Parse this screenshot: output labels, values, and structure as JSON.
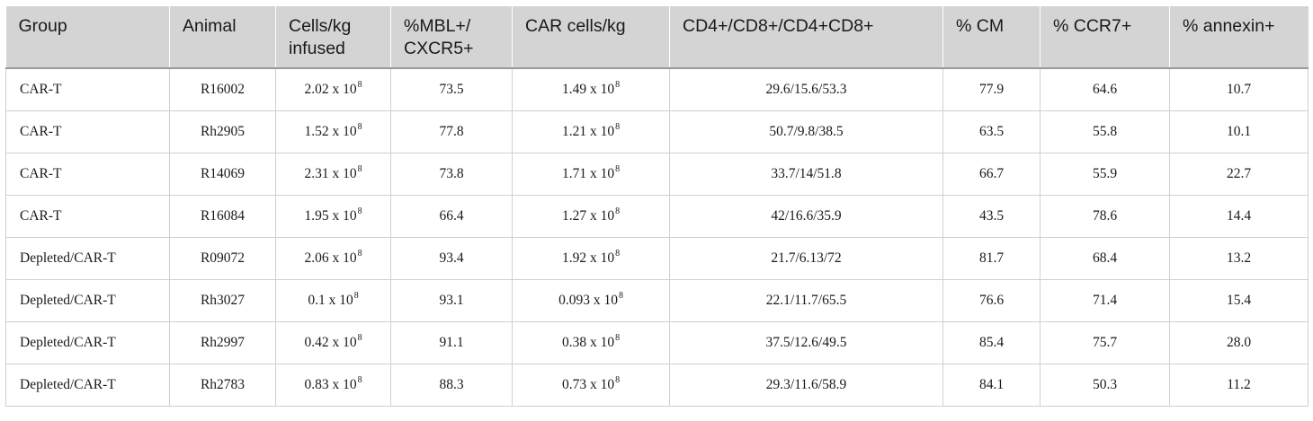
{
  "table": {
    "headers": [
      "Group",
      "Animal",
      "Cells/kg infused",
      "%MBL+/ CXCR5+",
      "CAR cells/kg",
      "CD4+/CD8+/CD4+CD8+",
      "% CM",
      "% CCR7+",
      "% annexin+"
    ],
    "rows": [
      {
        "group": "CAR-T",
        "animal": "R16002",
        "cells_base": "2.02 x 10",
        "cells_exp": "8",
        "mbl": "73.5",
        "car_base": "1.49 x 10",
        "car_exp": "8",
        "cd": "29.6/15.6/53.3",
        "cm": "77.9",
        "ccr7": "64.6",
        "annexin": "10.7"
      },
      {
        "group": "CAR-T",
        "animal": "Rh2905",
        "cells_base": "1.52 x 10",
        "cells_exp": "8",
        "mbl": "77.8",
        "car_base": "1.21 x 10",
        "car_exp": "8",
        "cd": "50.7/9.8/38.5",
        "cm": "63.5",
        "ccr7": "55.8",
        "annexin": "10.1"
      },
      {
        "group": "CAR-T",
        "animal": "R14069",
        "cells_base": "2.31 x 10",
        "cells_exp": "8",
        "mbl": "73.8",
        "car_base": "1.71 x 10",
        "car_exp": "8",
        "cd": "33.7/14/51.8",
        "cm": "66.7",
        "ccr7": "55.9",
        "annexin": "22.7"
      },
      {
        "group": "CAR-T",
        "animal": "R16084",
        "cells_base": "1.95 x 10",
        "cells_exp": "8",
        "mbl": "66.4",
        "car_base": "1.27 x 10",
        "car_exp": "8",
        "cd": "42/16.6/35.9",
        "cm": "43.5",
        "ccr7": "78.6",
        "annexin": "14.4"
      },
      {
        "group": "Depleted/CAR-T",
        "animal": "R09072",
        "cells_base": "2.06 x 10",
        "cells_exp": "8",
        "mbl": "93.4",
        "car_base": "1.92 x 10",
        "car_exp": "8",
        "cd": "21.7/6.13/72",
        "cm": "81.7",
        "ccr7": "68.4",
        "annexin": "13.2"
      },
      {
        "group": "Depleted/CAR-T",
        "animal": "Rh3027",
        "cells_base": "0.1 x 10",
        "cells_exp": "8",
        "mbl": "93.1",
        "car_base": "0.093 x 10",
        "car_exp": "8",
        "cd": "22.1/11.7/65.5",
        "cm": "76.6",
        "ccr7": "71.4",
        "annexin": "15.4"
      },
      {
        "group": "Depleted/CAR-T",
        "animal": "Rh2997",
        "cells_base": "0.42 x 10",
        "cells_exp": "8",
        "mbl": "91.1",
        "car_base": "0.38 x 10",
        "car_exp": "8",
        "cd": "37.5/12.6/49.5",
        "cm": "85.4",
        "ccr7": "75.7",
        "annexin": "28.0"
      },
      {
        "group": "Depleted/CAR-T",
        "animal": "Rh2783",
        "cells_base": "0.83 x 10",
        "cells_exp": "8",
        "mbl": "88.3",
        "car_base": "0.73 x 10",
        "car_exp": "8",
        "cd": "29.3/11.6/58.9",
        "cm": "84.1",
        "ccr7": "50.3",
        "annexin": "11.2"
      }
    ]
  }
}
